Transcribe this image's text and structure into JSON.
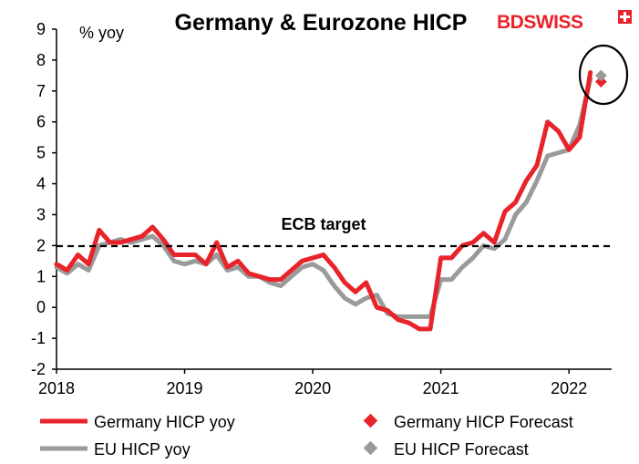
{
  "brand": {
    "name_bd": "BD",
    "name_swiss": "SWISS",
    "color": "#e8232a"
  },
  "chart_data": {
    "type": "line",
    "title": "Germany & Eurozone HICP",
    "ylabel": "% yoy",
    "xlabel": "",
    "ylim": [
      -2,
      9
    ],
    "yticks": [
      -2,
      -1,
      0,
      1,
      2,
      3,
      4,
      5,
      6,
      7,
      8,
      9
    ],
    "xlim": [
      2018,
      2022.333
    ],
    "xticks": [
      2018,
      2019,
      2020,
      2021,
      2022
    ],
    "grid": false,
    "legend_position": "bottom",
    "annotation": {
      "text": "ECB target",
      "y": 2
    },
    "series": [
      {
        "name": "Germany HICP yoy",
        "color": "#e8232a",
        "x": [
          2018.0,
          2018.083,
          2018.167,
          2018.25,
          2018.333,
          2018.417,
          2018.5,
          2018.583,
          2018.667,
          2018.75,
          2018.833,
          2018.917,
          2019.0,
          2019.083,
          2019.167,
          2019.25,
          2019.333,
          2019.417,
          2019.5,
          2019.583,
          2019.667,
          2019.75,
          2019.833,
          2019.917,
          2020.0,
          2020.083,
          2020.167,
          2020.25,
          2020.333,
          2020.417,
          2020.5,
          2020.583,
          2020.667,
          2020.75,
          2020.833,
          2020.917,
          2021.0,
          2021.083,
          2021.167,
          2021.25,
          2021.333,
          2021.417,
          2021.5,
          2021.583,
          2021.667,
          2021.75,
          2021.833,
          2021.917,
          2022.0,
          2022.083,
          2022.167
        ],
        "values": [
          1.4,
          1.2,
          1.7,
          1.4,
          2.5,
          2.1,
          2.1,
          2.2,
          2.3,
          2.6,
          2.2,
          1.7,
          1.7,
          1.7,
          1.4,
          2.1,
          1.3,
          1.5,
          1.1,
          1.0,
          0.9,
          0.9,
          1.2,
          1.5,
          1.6,
          1.7,
          1.3,
          0.8,
          0.5,
          0.8,
          0.0,
          -0.1,
          -0.4,
          -0.5,
          -0.7,
          -0.7,
          1.6,
          1.6,
          2.0,
          2.1,
          2.4,
          2.1,
          3.1,
          3.4,
          4.1,
          4.6,
          6.0,
          5.7,
          5.1,
          5.5,
          7.6
        ]
      },
      {
        "name": "EU HICP yoy",
        "color": "#9a9a9a",
        "x": [
          2018.0,
          2018.083,
          2018.167,
          2018.25,
          2018.333,
          2018.417,
          2018.5,
          2018.583,
          2018.667,
          2018.75,
          2018.833,
          2018.917,
          2019.0,
          2019.083,
          2019.167,
          2019.25,
          2019.333,
          2019.417,
          2019.5,
          2019.583,
          2019.667,
          2019.75,
          2019.833,
          2019.917,
          2020.0,
          2020.083,
          2020.167,
          2020.25,
          2020.333,
          2020.417,
          2020.5,
          2020.583,
          2020.667,
          2020.75,
          2020.833,
          2020.917,
          2021.0,
          2021.083,
          2021.167,
          2021.25,
          2021.333,
          2021.417,
          2021.5,
          2021.583,
          2021.667,
          2021.75,
          2021.833,
          2021.917,
          2022.0,
          2022.083,
          2022.167
        ],
        "values": [
          1.3,
          1.1,
          1.4,
          1.2,
          2.0,
          2.1,
          2.2,
          2.1,
          2.2,
          2.3,
          2.0,
          1.5,
          1.4,
          1.5,
          1.4,
          1.7,
          1.2,
          1.3,
          1.0,
          1.0,
          0.8,
          0.7,
          1.0,
          1.3,
          1.4,
          1.2,
          0.7,
          0.3,
          0.1,
          0.3,
          0.4,
          -0.2,
          -0.3,
          -0.3,
          -0.3,
          -0.3,
          0.9,
          0.9,
          1.3,
          1.6,
          2.0,
          1.9,
          2.2,
          3.0,
          3.4,
          4.1,
          4.9,
          5.0,
          5.1,
          5.9,
          7.4
        ]
      },
      {
        "name": "Germany HICP Forecast",
        "color": "#e8232a",
        "x": [
          2022.25
        ],
        "values": [
          7.3
        ]
      },
      {
        "name": "EU  HICP Forecast",
        "color": "#9a9a9a",
        "x": [
          2022.25
        ],
        "values": [
          7.5
        ]
      }
    ]
  }
}
